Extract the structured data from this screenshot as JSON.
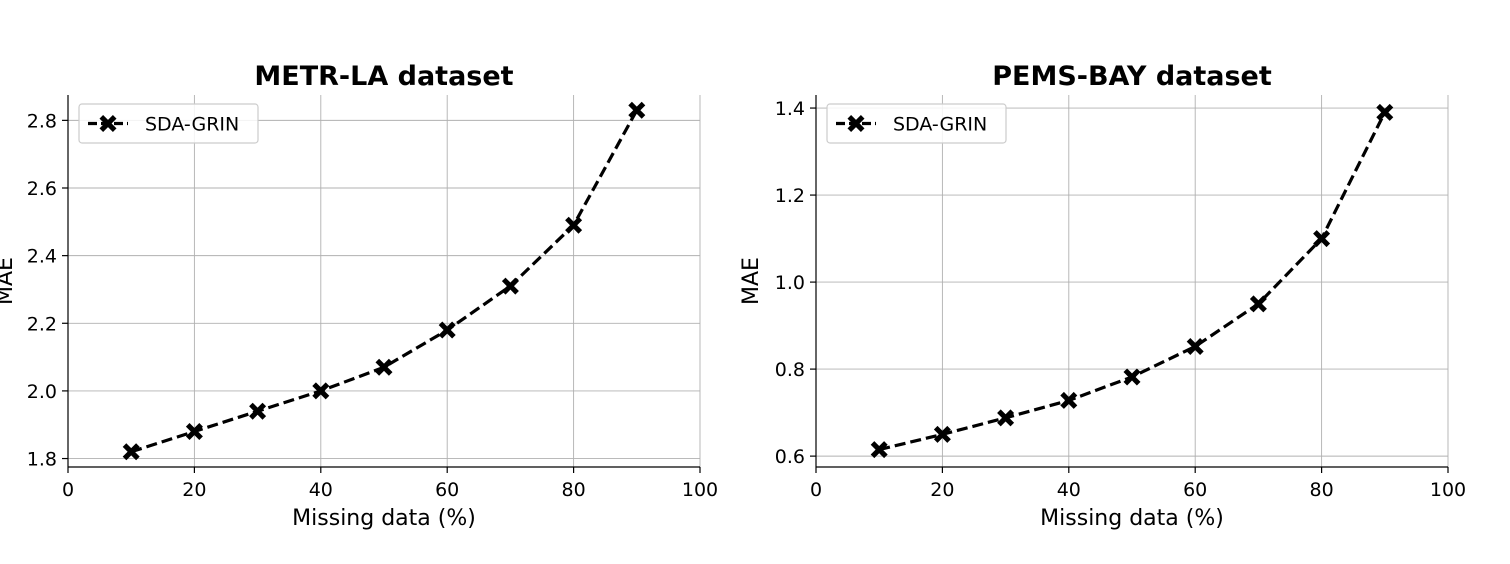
{
  "chart_data": [
    {
      "type": "line",
      "title": "METR-LA dataset",
      "xlabel": "Missing data (%)",
      "ylabel": "MAE",
      "xlim": [
        0,
        100
      ],
      "ylim": [
        1.775,
        2.875
      ],
      "xticks": [
        0,
        20,
        40,
        60,
        80,
        100
      ],
      "yticks": [
        1.8,
        2.0,
        2.2,
        2.4,
        2.6,
        2.8
      ],
      "ytick_decimals": 1,
      "grid": true,
      "legend_position": "top-left",
      "series": [
        {
          "name": "SDA-GRIN",
          "color": "#000000",
          "linestyle": "dashed",
          "marker": "X",
          "x": [
            10,
            20,
            30,
            40,
            50,
            60,
            70,
            80,
            90
          ],
          "y": [
            1.82,
            1.88,
            1.94,
            2.0,
            2.07,
            2.18,
            2.31,
            2.49,
            2.83
          ]
        }
      ]
    },
    {
      "type": "line",
      "title": "PEMS-BAY dataset",
      "xlabel": "Missing data (%)",
      "ylabel": "MAE",
      "xlim": [
        0,
        100
      ],
      "ylim": [
        0.575,
        1.43
      ],
      "xticks": [
        0,
        20,
        40,
        60,
        80,
        100
      ],
      "yticks": [
        0.6,
        0.8,
        1.0,
        1.2,
        1.4
      ],
      "ytick_decimals": 1,
      "grid": true,
      "legend_position": "top-left",
      "series": [
        {
          "name": "SDA-GRIN",
          "color": "#000000",
          "linestyle": "dashed",
          "marker": "X",
          "x": [
            10,
            20,
            30,
            40,
            50,
            60,
            70,
            80,
            90
          ],
          "y": [
            0.615,
            0.65,
            0.688,
            0.728,
            0.782,
            0.852,
            0.95,
            1.1,
            1.39
          ]
        }
      ]
    }
  ]
}
